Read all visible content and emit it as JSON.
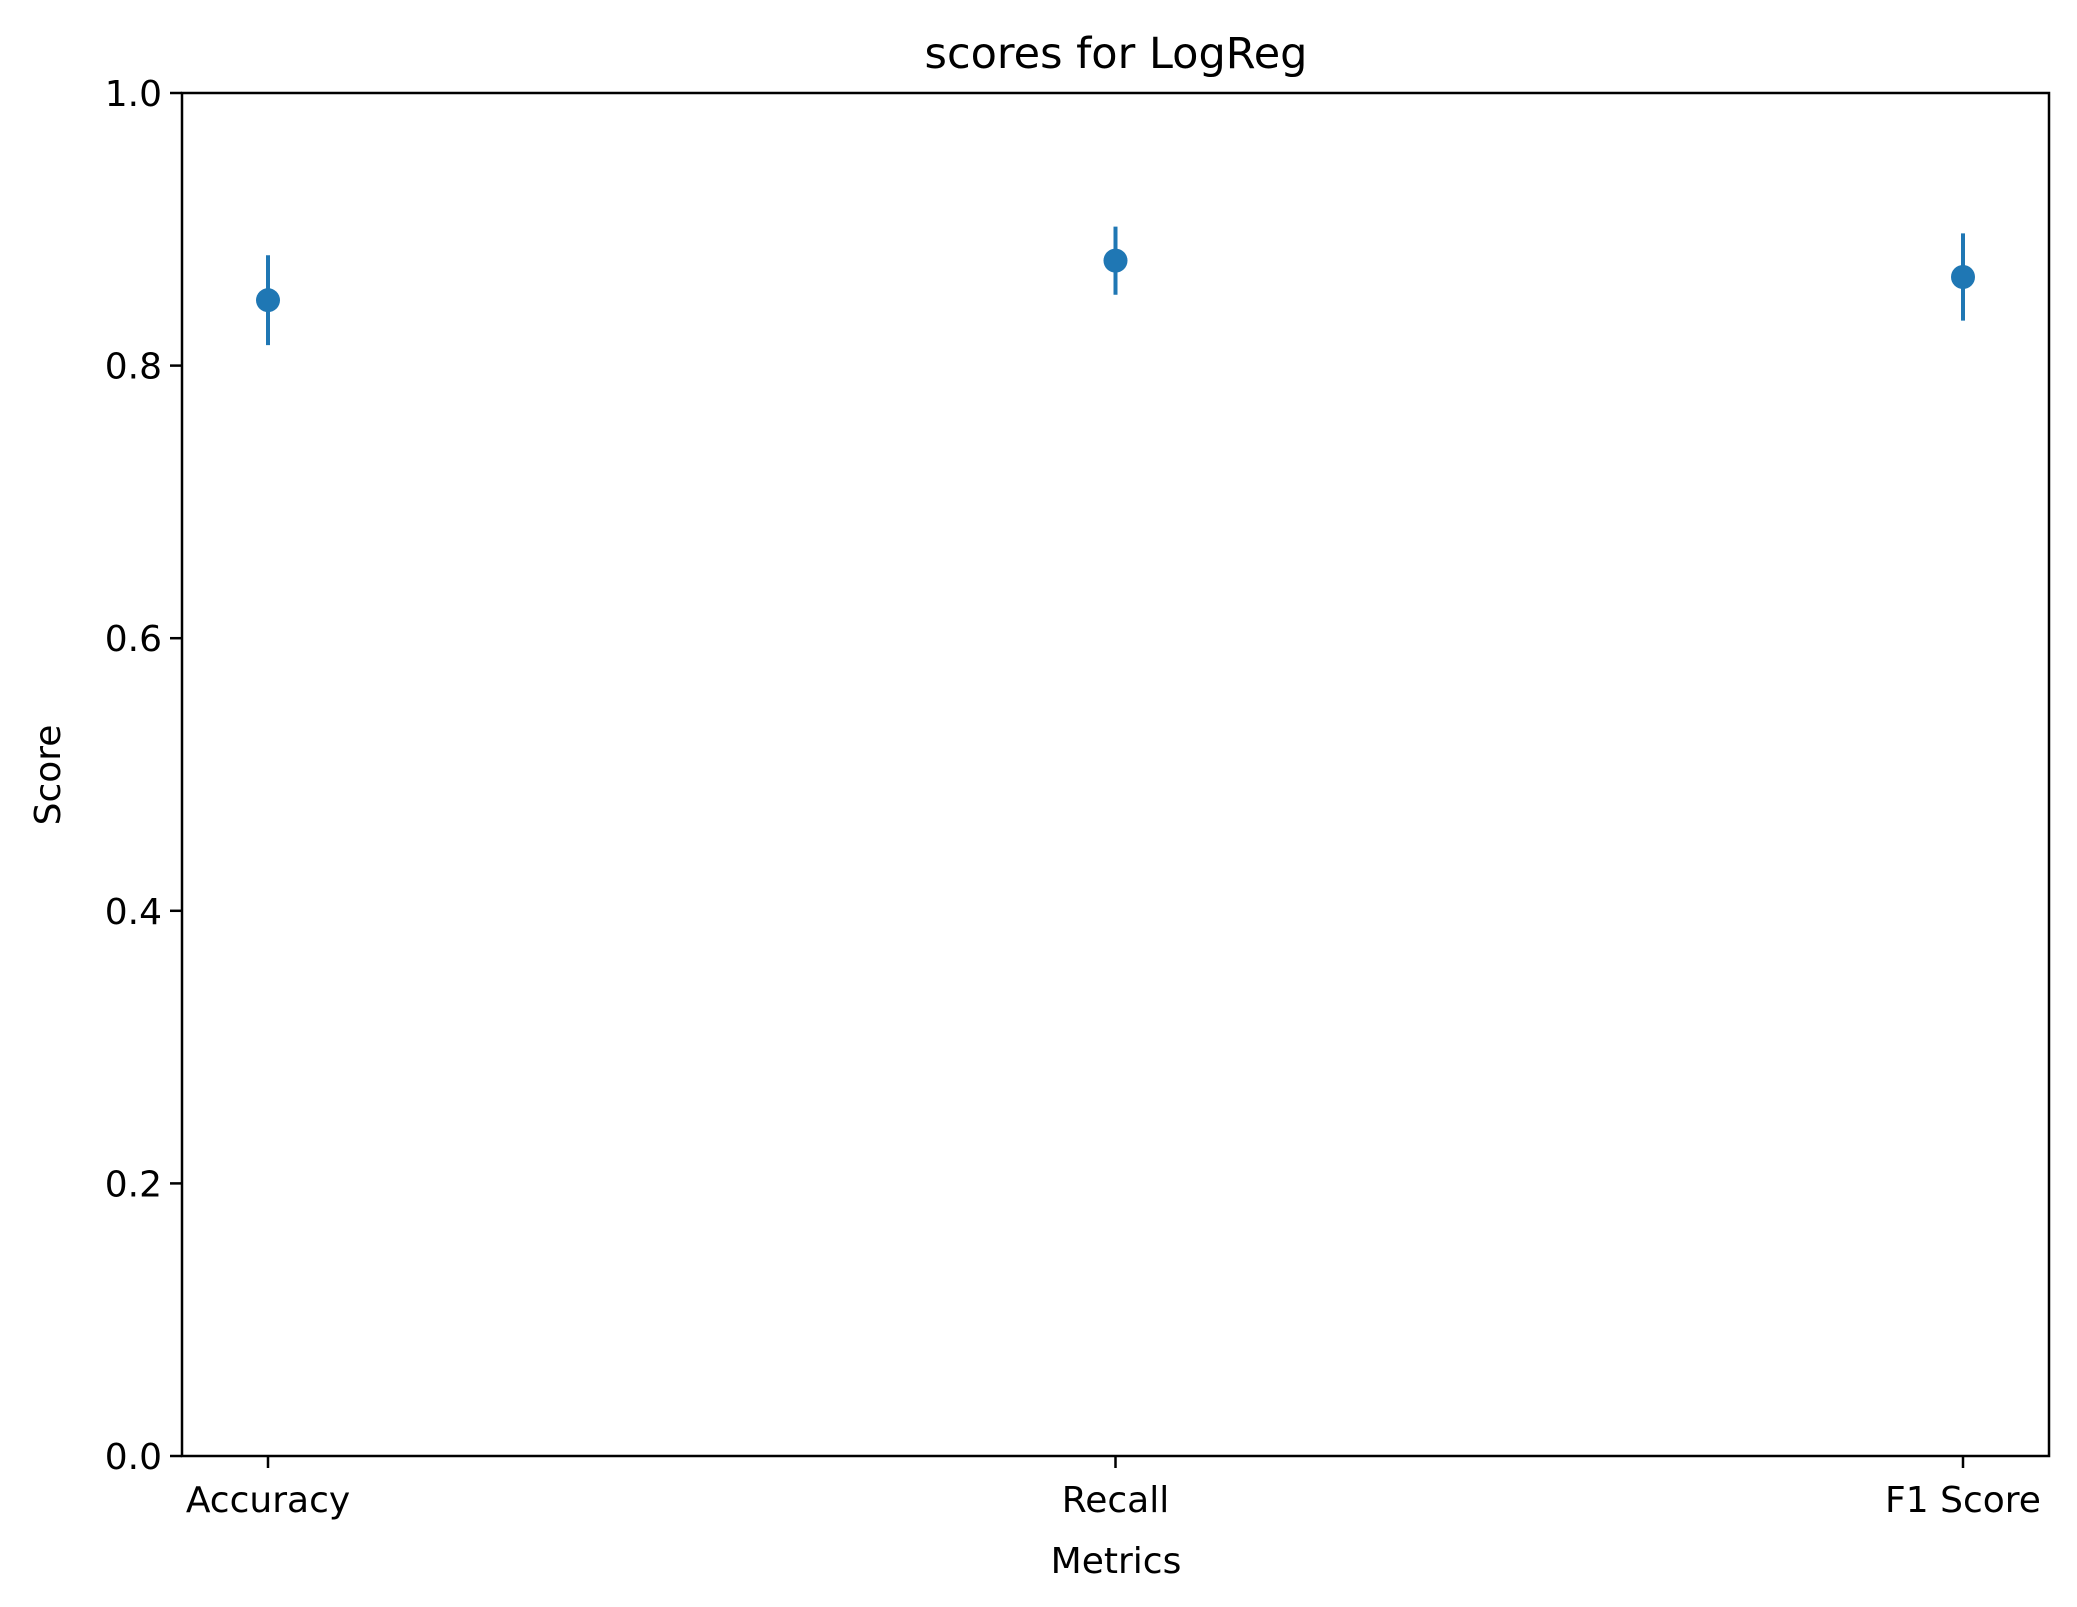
{
  "chart_data": {
    "type": "scatter",
    "title": "scores for LogReg",
    "xlabel": "Metrics",
    "ylabel": "Score",
    "categories": [
      "Accuracy",
      "Recall",
      "F1 Score"
    ],
    "series": [
      {
        "values": [
          0.848,
          0.877,
          0.865
        ],
        "error": [
          0.033,
          0.025,
          0.032
        ]
      }
    ],
    "ylim": [
      0.0,
      1.0
    ],
    "yticks": [
      "0.0",
      "0.2",
      "0.4",
      "0.6",
      "0.8",
      "1.0"
    ],
    "grid": false,
    "legend": "none",
    "colors": {
      "series": "#1f77b4",
      "axes": "#000000"
    }
  }
}
